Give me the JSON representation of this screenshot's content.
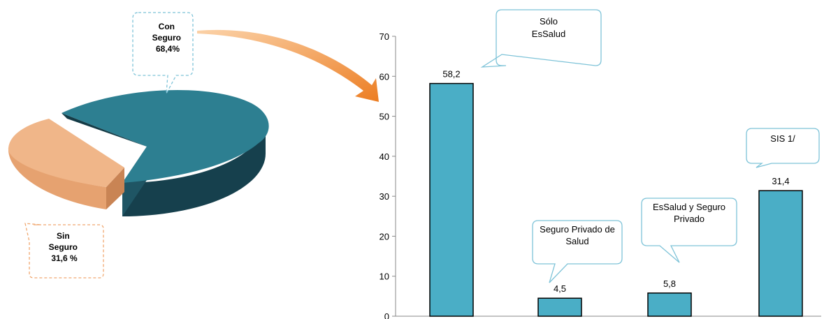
{
  "chart_data": [
    {
      "type": "pie",
      "slices": [
        {
          "name": "Con Seguro",
          "label_lines": [
            "Con",
            "Seguro",
            "68,4%"
          ],
          "value": 68.4,
          "color": "#2d7f91"
        },
        {
          "name": "Sin Seguro",
          "label_lines": [
            "Sin",
            "Seguro",
            "31,6 %"
          ],
          "value": 31.6,
          "color": "#f0b689"
        }
      ]
    },
    {
      "type": "bar",
      "ylim": [
        0,
        70
      ],
      "yticks": [
        "0",
        "10",
        "20",
        "30",
        "40",
        "50",
        "60",
        "70"
      ],
      "bar_color": "#4aaec6",
      "bars": [
        {
          "value": 58.2,
          "value_label": "58,2",
          "callout_lines": [
            "Sólo",
            "EsSalud"
          ]
        },
        {
          "value": 4.5,
          "value_label": "4,5",
          "callout_lines": [
            "Seguro Privado de",
            "Salud"
          ]
        },
        {
          "value": 5.8,
          "value_label": "5,8",
          "callout_lines": [
            "EsSalud y Seguro",
            "Privado"
          ]
        },
        {
          "value": 31.4,
          "value_label": "31,4",
          "callout_lines": [
            "SIS  1/"
          ]
        }
      ]
    }
  ]
}
